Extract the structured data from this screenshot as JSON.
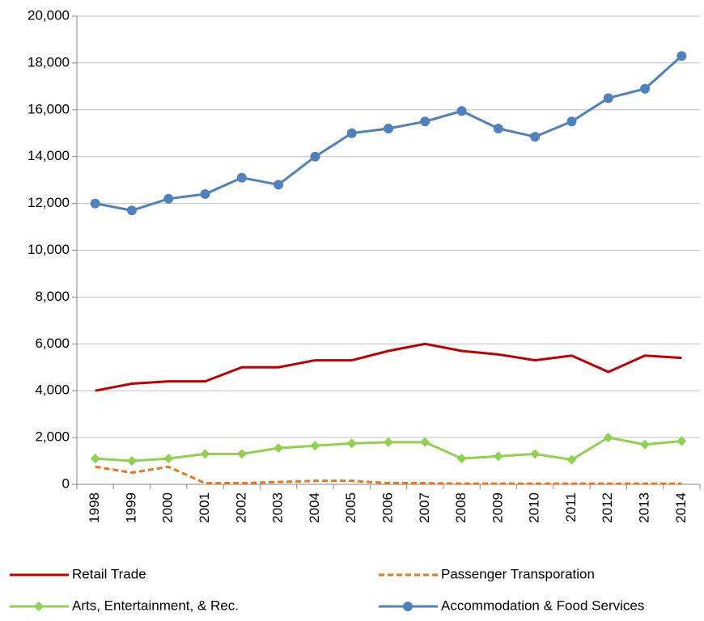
{
  "chart_data": {
    "type": "line",
    "categories": [
      "1998",
      "1999",
      "2000",
      "2001",
      "2002",
      "2003",
      "2004",
      "2005",
      "2006",
      "2007",
      "2008",
      "2009",
      "2010",
      "2011",
      "2012",
      "2013",
      "2014"
    ],
    "ylim": [
      0,
      20000
    ],
    "yticks": [
      0,
      {
        "value": 2000,
        "label": "2,000"
      },
      {
        "value": 4000,
        "label": "4,000"
      },
      {
        "value": 6000,
        "label": "6,000"
      },
      {
        "value": 8000,
        "label": "8,000"
      },
      {
        "value": 10000,
        "label": "10,000"
      },
      {
        "value": 12000,
        "label": "12,000"
      },
      {
        "value": 14000,
        "label": "14,000"
      },
      {
        "value": 16000,
        "label": "16,000"
      },
      {
        "value": 18000,
        "label": "18,000"
      },
      {
        "value": 20000,
        "label": "20,000"
      }
    ],
    "grid": true,
    "series": [
      {
        "name": "Retail Trade",
        "color": "#c00000",
        "dash": false,
        "marker": "none",
        "values": [
          4000,
          4300,
          4400,
          4400,
          5000,
          5000,
          5300,
          5300,
          5700,
          6000,
          5700,
          5550,
          5300,
          5500,
          4800,
          5500,
          5400
        ]
      },
      {
        "name": "Passenger Transporation",
        "color": "#e87722",
        "dash": true,
        "marker": "none",
        "values": [
          750,
          500,
          750,
          50,
          50,
          100,
          150,
          150,
          50,
          50,
          30,
          30,
          30,
          30,
          30,
          30,
          30
        ]
      },
      {
        "name": "Arts, Entertainment, & Rec.",
        "color": "#92d050",
        "dash": false,
        "marker": "diamond",
        "values": [
          1100,
          1000,
          1100,
          1300,
          1300,
          1550,
          1650,
          1750,
          1800,
          1800,
          1100,
          1200,
          1300,
          1050,
          2000,
          1700,
          1850
        ]
      },
      {
        "name": "Accommodation & Food Services",
        "color": "#4f81bd",
        "dash": false,
        "marker": "circle",
        "values": [
          12000,
          11700,
          12200,
          12400,
          13100,
          12800,
          14000,
          15000,
          15200,
          15500,
          15950,
          15200,
          14850,
          15500,
          16500,
          16900,
          18300
        ]
      }
    ]
  }
}
